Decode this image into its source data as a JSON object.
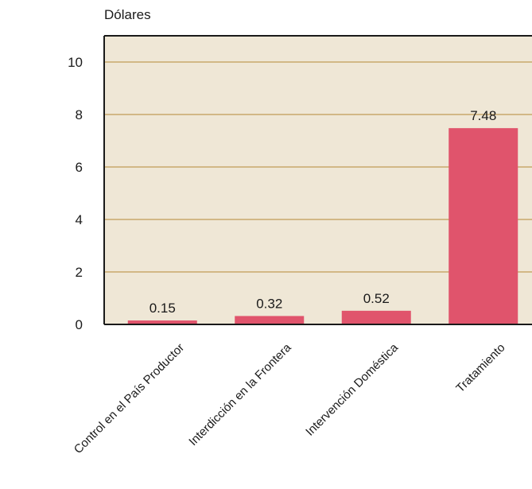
{
  "chart_data": {
    "type": "bar",
    "title": "",
    "xlabel": "",
    "ylabel": "Dólares",
    "categories": [
      "Control en el País Productor",
      "Interdicción en la Frontera",
      "Intervención Doméstica",
      "Tratamiento"
    ],
    "values": [
      0.15,
      0.32,
      0.52,
      7.48
    ],
    "value_labels": [
      "0.15",
      "0.32",
      "0.52",
      "7.48"
    ],
    "ylim": [
      0,
      11
    ],
    "yticks": [
      0,
      2,
      4,
      6,
      8,
      10
    ],
    "grid": true,
    "legend": "none",
    "colors": {
      "bar": "#e0546c",
      "plot_background": "#efe7d6",
      "gridline": "#c9a86b",
      "axis": "#1a1a1a"
    }
  }
}
